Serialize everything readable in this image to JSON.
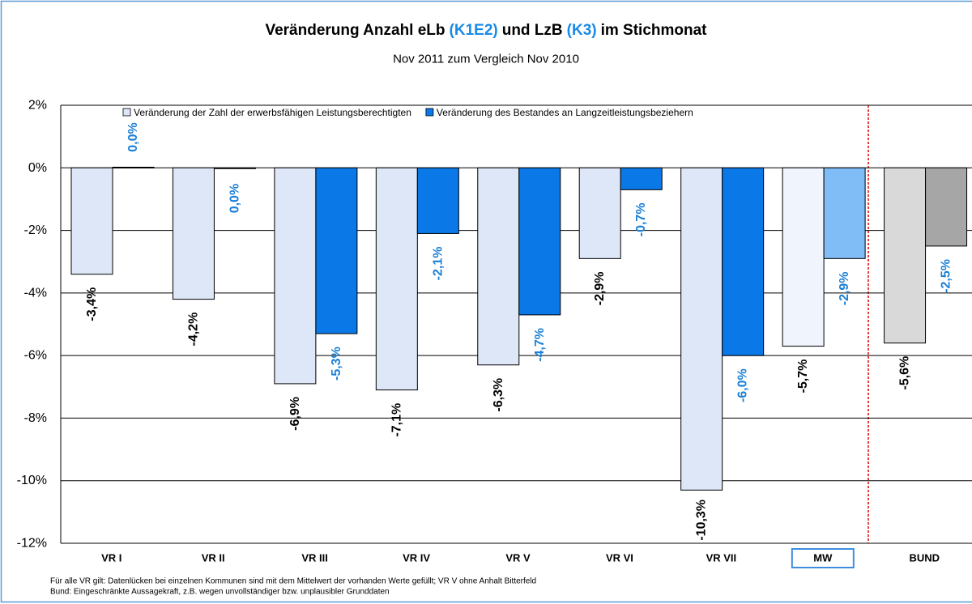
{
  "chart_data": {
    "type": "bar",
    "title": [
      {
        "text": "Veränderung Anzahl eLb",
        "color": "#000000"
      },
      {
        "text": "(K1E2)",
        "color": "#1a8ae6"
      },
      {
        "text": "und LzB",
        "color": "#000000"
      },
      {
        "text": "(K3)",
        "color": "#1a8ae6"
      },
      {
        "text": "im Stichmonat",
        "color": "#000000"
      }
    ],
    "subtitle": "Nov 2011 zum Vergleich Nov 2010",
    "categories": [
      "VR I",
      "VR II",
      "VR III",
      "VR IV",
      "VR V",
      "VR VI",
      "VR VII",
      "MW",
      "BUND"
    ],
    "series": [
      {
        "name": "Veränderung der Zahl der erwerbsfähigen Leistungsberechtigten",
        "color": "#dde7f8",
        "label_color": "#000000",
        "colors": [
          "#dde7f8",
          "#dde7f8",
          "#dde7f8",
          "#dde7f8",
          "#dde7f8",
          "#dde7f8",
          "#dde7f8",
          "#f0f4fc",
          "#d9d9d9"
        ],
        "values": [
          -3.4,
          -4.2,
          -6.9,
          -7.1,
          -6.3,
          -2.9,
          -10.3,
          -5.7,
          -5.6
        ],
        "value_labels": [
          "-3,4%",
          "-4,2%",
          "-6,9%",
          "-7,1%",
          "-6,3%",
          "-2,9%",
          "-10,3%",
          "-5,7%",
          "-5,6%"
        ]
      },
      {
        "name": "Veränderung des Bestandes an Langzeitleistungsbeziehern",
        "color": "#0a78e6",
        "label_color": "#1a7fd6",
        "colors": [
          "#0a78e6",
          "#0a78e6",
          "#0a78e6",
          "#0a78e6",
          "#0a78e6",
          "#0a78e6",
          "#0a78e6",
          "#80bcf5",
          "#a6a6a6"
        ],
        "values": [
          0.02,
          -0.02,
          -5.3,
          -2.1,
          -4.7,
          -0.7,
          -6.0,
          -2.9,
          -2.5
        ],
        "value_labels": [
          "0,0%",
          "0,0%",
          "-5,3%",
          "-2,1%",
          "-4,7%",
          "-0,7%",
          "-6,0%",
          "-2,9%",
          "-2,5%"
        ]
      }
    ],
    "ylim": [
      -12,
      2
    ],
    "yticks": [
      {
        "value": 2,
        "label": "2%"
      },
      {
        "value": 0,
        "label": "0%"
      },
      {
        "value": -2,
        "label": "-2%"
      },
      {
        "value": -4,
        "label": "-4%"
      },
      {
        "value": -6,
        "label": "-6%"
      },
      {
        "value": -8,
        "label": "-8%"
      },
      {
        "value": -10,
        "label": "-10%"
      },
      {
        "value": -12,
        "label": "-12%"
      }
    ],
    "grid": true,
    "footnotes": [
      "Für alle VR gilt: Datenlücken bei einzelnen Kommunen sind mit dem Mittelwert der vorhanden Werte gefüllt; VR V ohne Anhalt Bitterfeld",
      "Bund: Eingeschränkte Aussagekraft, z.B. wegen unvollständiger bzw. unplausibler Grunddaten"
    ]
  }
}
